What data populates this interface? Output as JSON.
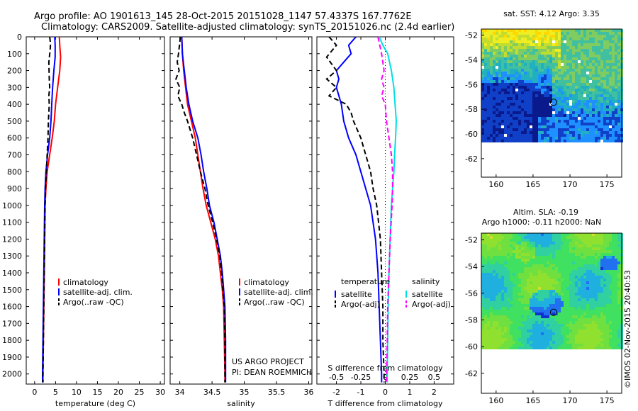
{
  "header": {
    "line1": "Argo profile: AO 1901613_145 28-Oct-2015 20151028_1147 57.4337S 167.7762E",
    "line2": "Climatology: CARS2009. Satellite-adjusted climatology: synTS_20151026.nc (2.4d earlier)"
  },
  "chart_data": [
    {
      "type": "line",
      "xlabel": "temperature (deg C)",
      "ylabel": "",
      "xlim": [
        -2,
        31
      ],
      "ylim": [
        2060,
        0
      ],
      "xticks": [
        0,
        5,
        10,
        15,
        20,
        25,
        30
      ],
      "yticks": [
        0,
        100,
        200,
        300,
        400,
        500,
        600,
        700,
        800,
        900,
        1000,
        1100,
        1200,
        1300,
        1400,
        1500,
        1600,
        1700,
        1800,
        1900,
        2000
      ],
      "series": [
        {
          "name": "climatology",
          "color": "#ff0000",
          "dash": false,
          "points": [
            [
              5.9,
              0
            ],
            [
              6.0,
              50
            ],
            [
              6.2,
              120
            ],
            [
              6.0,
              200
            ],
            [
              5.5,
              300
            ],
            [
              5.0,
              400
            ],
            [
              4.7,
              500
            ],
            [
              4.2,
              600
            ],
            [
              3.6,
              700
            ],
            [
              3.0,
              800
            ],
            [
              2.7,
              900
            ],
            [
              2.5,
              1000
            ],
            [
              2.4,
              1200
            ],
            [
              2.3,
              1400
            ],
            [
              2.2,
              1600
            ],
            [
              2.1,
              1800
            ],
            [
              2.0,
              2000
            ],
            [
              2.0,
              2050
            ]
          ]
        },
        {
          "name": "satellite-adj. clim.",
          "color": "#0000ff",
          "dash": false,
          "points": [
            [
              4.8,
              0
            ],
            [
              4.9,
              50
            ],
            [
              4.9,
              120
            ],
            [
              4.6,
              200
            ],
            [
              4.3,
              300
            ],
            [
              4.1,
              400
            ],
            [
              3.9,
              500
            ],
            [
              3.6,
              600
            ],
            [
              3.1,
              700
            ],
            [
              2.7,
              800
            ],
            [
              2.5,
              900
            ],
            [
              2.4,
              1000
            ],
            [
              2.3,
              1200
            ],
            [
              2.2,
              1400
            ],
            [
              2.1,
              1600
            ],
            [
              2.0,
              1800
            ],
            [
              1.9,
              2000
            ],
            [
              1.9,
              2050
            ]
          ]
        },
        {
          "name": "Argo(..raw -QC)",
          "color": "#000000",
          "dash": true,
          "points": [
            [
              3.6,
              0
            ],
            [
              3.8,
              40
            ],
            [
              3.7,
              80
            ],
            [
              3.4,
              150
            ],
            [
              3.5,
              250
            ],
            [
              3.6,
              300
            ],
            [
              3.4,
              350
            ],
            [
              3.5,
              400
            ],
            [
              3.4,
              450
            ],
            [
              3.3,
              500
            ],
            [
              3.2,
              600
            ],
            [
              3.0,
              700
            ],
            [
              2.8,
              800
            ],
            [
              2.6,
              900
            ],
            [
              2.5,
              1000
            ],
            [
              2.4,
              1200
            ],
            [
              2.3,
              1400
            ],
            [
              2.2,
              1600
            ],
            [
              2.1,
              1800
            ],
            [
              2.0,
              2000
            ],
            [
              2.0,
              2050
            ]
          ]
        }
      ],
      "legend": "lower-right"
    },
    {
      "type": "line",
      "xlabel": "salinity",
      "ylabel": "",
      "xlim": [
        33.85,
        36.05
      ],
      "ylim": [
        2060,
        0
      ],
      "xticks": [
        34,
        34.5,
        35,
        35.5,
        36
      ],
      "xticklabels": [
        "34",
        "34.5",
        "35",
        "35.5",
        "36"
      ],
      "series": [
        {
          "name": "climatology",
          "color": "#ff0000",
          "dash": false,
          "points": [
            [
              34.03,
              0
            ],
            [
              34.04,
              100
            ],
            [
              34.06,
              200
            ],
            [
              34.09,
              300
            ],
            [
              34.12,
              400
            ],
            [
              34.18,
              500
            ],
            [
              34.24,
              600
            ],
            [
              34.28,
              700
            ],
            [
              34.32,
              800
            ],
            [
              34.36,
              900
            ],
            [
              34.41,
              1000
            ],
            [
              34.48,
              1100
            ],
            [
              34.55,
              1200
            ],
            [
              34.6,
              1300
            ],
            [
              34.63,
              1400
            ],
            [
              34.66,
              1500
            ],
            [
              34.68,
              1600
            ],
            [
              34.69,
              1800
            ],
            [
              34.7,
              2000
            ],
            [
              34.7,
              2050
            ]
          ]
        },
        {
          "name": "satellite-adj. clim.",
          "color": "#0000ff",
          "dash": false,
          "points": [
            [
              34.03,
              0
            ],
            [
              34.04,
              100
            ],
            [
              34.07,
              200
            ],
            [
              34.1,
              300
            ],
            [
              34.14,
              400
            ],
            [
              34.2,
              500
            ],
            [
              34.28,
              600
            ],
            [
              34.33,
              700
            ],
            [
              34.37,
              800
            ],
            [
              34.42,
              900
            ],
            [
              34.46,
              1000
            ],
            [
              34.53,
              1100
            ],
            [
              34.58,
              1200
            ],
            [
              34.63,
              1300
            ],
            [
              34.66,
              1400
            ],
            [
              34.68,
              1500
            ],
            [
              34.7,
              1600
            ],
            [
              34.71,
              1800
            ],
            [
              34.71,
              2000
            ],
            [
              34.71,
              2050
            ]
          ]
        },
        {
          "name": "Argo(..raw -QC)",
          "color": "#000000",
          "dash": true,
          "points": [
            [
              34.01,
              0
            ],
            [
              33.98,
              100
            ],
            [
              33.96,
              150
            ],
            [
              33.99,
              200
            ],
            [
              33.94,
              250
            ],
            [
              34.0,
              300
            ],
            [
              33.97,
              350
            ],
            [
              34.03,
              400
            ],
            [
              34.07,
              450
            ],
            [
              34.12,
              500
            ],
            [
              34.2,
              600
            ],
            [
              34.26,
              700
            ],
            [
              34.32,
              800
            ],
            [
              34.39,
              900
            ],
            [
              34.44,
              1000
            ],
            [
              34.51,
              1100
            ],
            [
              34.57,
              1200
            ],
            [
              34.62,
              1300
            ],
            [
              34.65,
              1400
            ],
            [
              34.67,
              1500
            ],
            [
              34.69,
              1600
            ],
            [
              34.7,
              1800
            ],
            [
              34.7,
              2000
            ],
            [
              34.7,
              2050
            ]
          ]
        }
      ],
      "legend": "lower-right",
      "annotations": [
        "US ARGO PROJECT",
        "PI: DEAN ROEMMICH"
      ]
    },
    {
      "type": "line",
      "xlabel": "T difference from climatology",
      "top_label": "S difference from climatology",
      "xlim": [
        -2.8,
        2.8
      ],
      "ylim": [
        2060,
        0
      ],
      "xticks_bottom": [
        -2,
        -1,
        0,
        1,
        2
      ],
      "xticks_top": [
        -0.5,
        -0.25,
        0,
        0.25,
        0.5
      ],
      "series": [
        {
          "name": "temperature satellite",
          "color": "#0000ff",
          "dash": false,
          "points": [
            [
              -1.2,
              0
            ],
            [
              -1.5,
              50
            ],
            [
              -1.4,
              100
            ],
            [
              -1.7,
              150
            ],
            [
              -2.0,
              200
            ],
            [
              -1.9,
              250
            ],
            [
              -2.0,
              300
            ],
            [
              -1.8,
              400
            ],
            [
              -1.7,
              500
            ],
            [
              -1.5,
              600
            ],
            [
              -1.2,
              700
            ],
            [
              -1.0,
              800
            ],
            [
              -0.8,
              900
            ],
            [
              -0.6,
              1000
            ],
            [
              -0.4,
              1200
            ],
            [
              -0.3,
              1400
            ],
            [
              -0.25,
              1600
            ],
            [
              -0.2,
              1800
            ],
            [
              -0.15,
              2000
            ],
            [
              -0.15,
              2050
            ]
          ]
        },
        {
          "name": "temperature Argo(-adj)",
          "color": "#000000",
          "dash": true,
          "points": [
            [
              -2.3,
              0
            ],
            [
              -2.0,
              50
            ],
            [
              -2.4,
              120
            ],
            [
              -2.0,
              200
            ],
            [
              -2.4,
              250
            ],
            [
              -2.0,
              300
            ],
            [
              -2.3,
              350
            ],
            [
              -1.6,
              400
            ],
            [
              -1.4,
              450
            ],
            [
              -1.3,
              500
            ],
            [
              -1.0,
              600
            ],
            [
              -0.8,
              700
            ],
            [
              -0.6,
              800
            ],
            [
              -0.5,
              900
            ],
            [
              -0.35,
              1000
            ],
            [
              -0.2,
              1200
            ],
            [
              -0.15,
              1400
            ],
            [
              -0.1,
              1600
            ],
            [
              -0.1,
              1800
            ],
            [
              -0.05,
              2000
            ],
            [
              -0.05,
              2050
            ]
          ]
        },
        {
          "name": "salinity satellite",
          "color": "#00e0e0",
          "dash": false,
          "points": [
            [
              -0.25,
              0
            ],
            [
              -0.1,
              50
            ],
            [
              0.1,
              100
            ],
            [
              0.25,
              200
            ],
            [
              0.35,
              300
            ],
            [
              0.4,
              400
            ],
            [
              0.45,
              500
            ],
            [
              0.42,
              600
            ],
            [
              0.38,
              700
            ],
            [
              0.35,
              800
            ],
            [
              0.3,
              900
            ],
            [
              0.25,
              1000
            ],
            [
              0.2,
              1200
            ],
            [
              0.15,
              1400
            ],
            [
              0.12,
              1600
            ],
            [
              0.1,
              1800
            ],
            [
              0.08,
              2000
            ],
            [
              0.08,
              2050
            ]
          ]
        },
        {
          "name": "salinity Argo(-adj)",
          "color": "#ff00ff",
          "dash": true,
          "points": [
            [
              -0.3,
              0
            ],
            [
              -0.15,
              100
            ],
            [
              -0.05,
              200
            ],
            [
              -0.15,
              250
            ],
            [
              -0.05,
              300
            ],
            [
              -0.15,
              350
            ],
            [
              0.0,
              400
            ],
            [
              0.05,
              500
            ],
            [
              0.15,
              600
            ],
            [
              0.25,
              700
            ],
            [
              0.3,
              800
            ],
            [
              0.3,
              900
            ],
            [
              0.28,
              1000
            ],
            [
              0.2,
              1200
            ],
            [
              0.15,
              1400
            ],
            [
              0.1,
              1600
            ],
            [
              0.08,
              1800
            ],
            [
              0.05,
              2000
            ],
            [
              0.05,
              2050
            ]
          ]
        }
      ],
      "legend": "lower-center",
      "legend_headers": [
        "temperature",
        "salinity"
      ]
    },
    {
      "type": "heatmap",
      "title": "sat. SST: 4.12  Argo: 3.35",
      "xlim": [
        158,
        177
      ],
      "ylim": [
        -63.5,
        -51.5
      ],
      "xticks": [
        160,
        165,
        170,
        175
      ],
      "yticks": [
        -52,
        -54,
        -56,
        -58,
        -60,
        -62
      ],
      "marker": [
        167.78,
        -57.43
      ]
    },
    {
      "type": "heatmap",
      "title_line1": "Altim. SLA: -0.19",
      "title_line2": "Argo h1000: -0.11 h2000: NaN",
      "xlim": [
        158,
        177
      ],
      "ylim": [
        -63.5,
        -51.5
      ],
      "xticks": [
        160,
        165,
        170,
        175
      ],
      "yticks": [
        -52,
        -54,
        -56,
        -58,
        -60,
        -62
      ],
      "marker": [
        167.78,
        -57.43
      ]
    }
  ],
  "side_stamp": "©IMOS 02-Nov-2015 20:40:53"
}
